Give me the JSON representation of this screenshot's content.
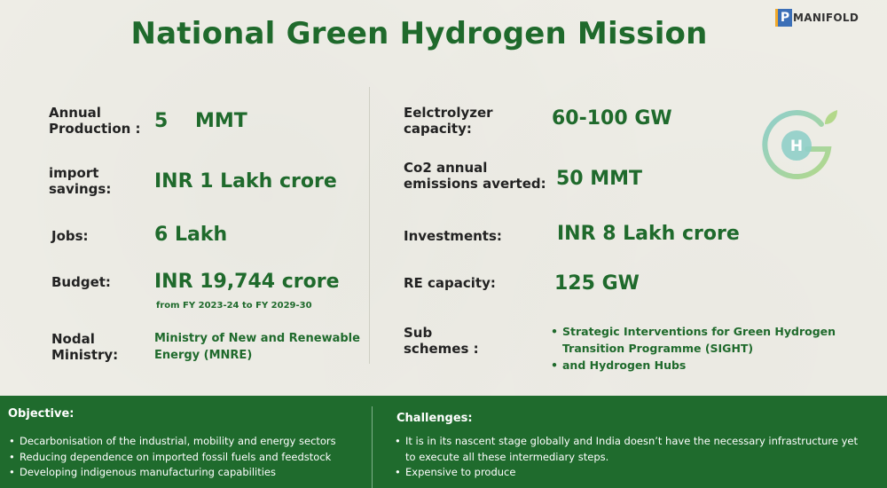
{
  "title": "National Green Hydrogen Mission",
  "logo": {
    "mark": "P",
    "text": "MANIFOLD"
  },
  "left": {
    "annual_label_1": "Annual",
    "annual_label_2": "Production",
    "annual_colon": ":",
    "annual_value": "5    MMT",
    "import_label_1": "import",
    "import_label_2": "savings:",
    "import_value": "INR 1 Lakh crore",
    "jobs_label": "Jobs:",
    "jobs_value": "6 Lakh",
    "budget_label": "Budget:",
    "budget_value": "INR 19,744 crore",
    "budget_note": "from FY 2023-24 to FY 2029-30",
    "nodal_label_1": "Nodal",
    "nodal_label_2": "Ministry:",
    "nodal_value_1": "Ministry of New and Renewable",
    "nodal_value_2": "Energy (MNRE)"
  },
  "right": {
    "electro_label_1": "Eelctrolyzer",
    "electro_label_2": "capacity:",
    "electro_value": "60-100 GW",
    "co2_label_1": "Co2 annual",
    "co2_label_2": "emissions averted:",
    "co2_value": "50 MMT",
    "invest_label": "Investments:",
    "invest_value": "INR 8 Lakh crore",
    "re_label": "RE capacity:",
    "re_value": "125 GW",
    "sub_label_1": "Sub",
    "sub_label_2": "schemes :",
    "sub_items": [
      "Strategic Interventions for Green Hydrogen Transition Programme (SIGHT)",
      "and Hydrogen Hubs"
    ]
  },
  "icon_letter": "H",
  "objective": {
    "heading": "Objective:",
    "items": [
      "Decarbonisation of the industrial, mobility and energy sectors",
      "Reducing dependence on imported fossil fuels and feedstock",
      "Developing indigenous manufacturing capabilities"
    ]
  },
  "challenges": {
    "heading": "Challenges:",
    "items": [
      "It is in its nascent stage globally and India doesn’t have the necessary infrastructure yet to execute all these intermediary steps.",
      "Expensive to produce"
    ]
  },
  "colors": {
    "green": "#1f6a2c",
    "band": "#1f6b2d",
    "background": "#efeee7"
  }
}
